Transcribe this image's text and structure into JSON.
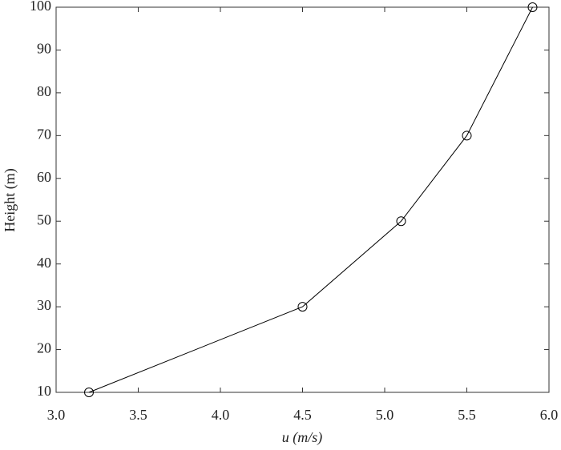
{
  "chart_data": {
    "type": "line",
    "x": [
      3.2,
      4.5,
      5.1,
      5.5,
      5.9
    ],
    "values": [
      10,
      30,
      50,
      70,
      100
    ],
    "color": "#000000",
    "marker": "open-circle",
    "xlabel": "u (m/s)",
    "ylabel": "Height (m)",
    "xlim": [
      3,
      6
    ],
    "xticks": [
      {
        "value": 3,
        "label": "3.0"
      },
      3.5,
      {
        "value": 4,
        "label": "4.0"
      },
      4.5,
      {
        "value": 5,
        "label": "5.0"
      },
      5.5,
      {
        "value": 6,
        "label": "6.0"
      }
    ],
    "ylim": [
      10,
      100
    ],
    "yticks": [
      10,
      20,
      30,
      40,
      50,
      60,
      70,
      80,
      90,
      100
    ],
    "grid": false
  }
}
